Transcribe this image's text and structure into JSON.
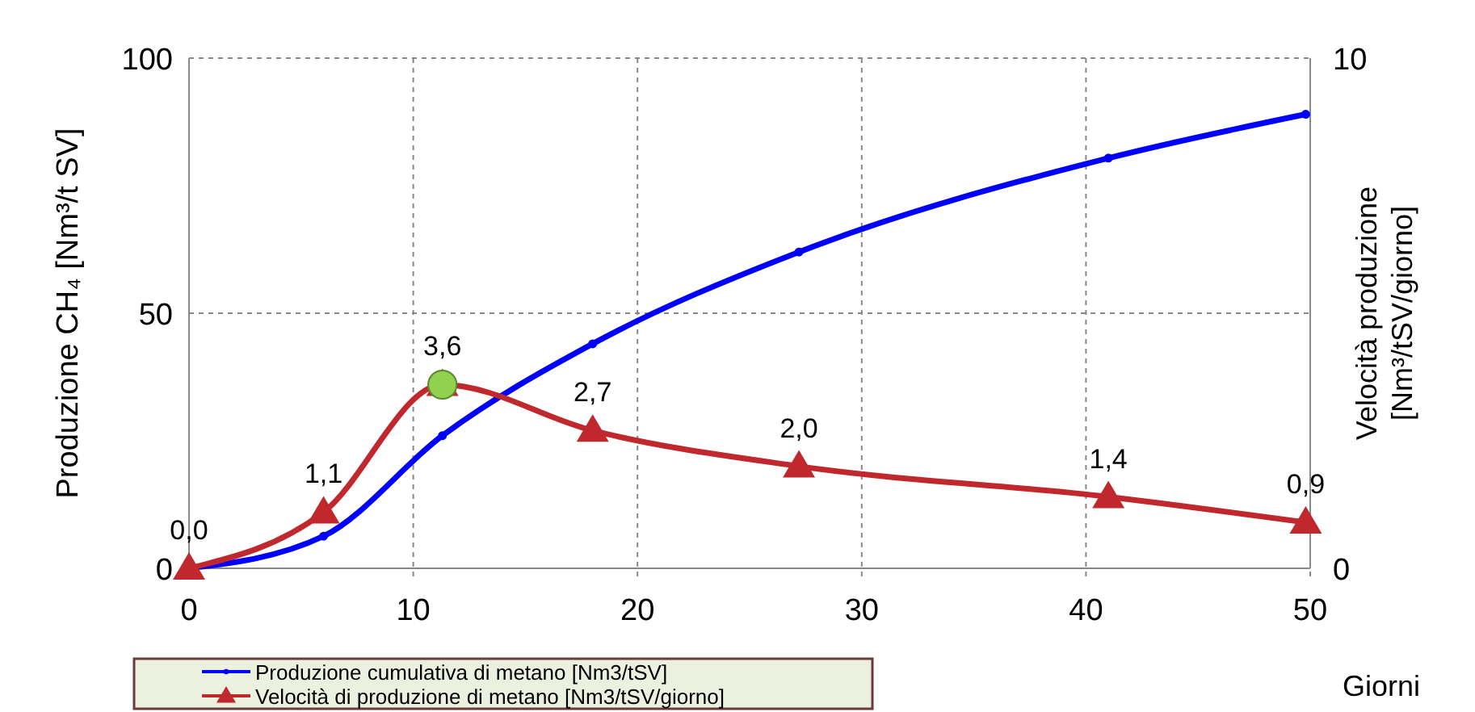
{
  "chart_data": {
    "type": "line",
    "xlabel": "Giorni",
    "ylabel": "Produzione CH₄ [Nm³/t SV]",
    "y2label": "Velocità produzione [Nm³/tSV/giorno]",
    "xlim": [
      0,
      50
    ],
    "xticks": [
      0,
      10,
      20,
      30,
      40,
      50
    ],
    "ylim": [
      0,
      100
    ],
    "yticks": [
      0,
      50,
      100
    ],
    "y2lim": [
      0,
      10
    ],
    "y2ticks": [
      0,
      10
    ],
    "grid": true,
    "legend": "bottom left",
    "line_style": "solid",
    "series": [
      {
        "name": "Produzione cumulativa di metano [Nm3/tSV]",
        "color": "#0000ff",
        "marker": "circle",
        "x": [
          0,
          6,
          11.3,
          18,
          27.2,
          41,
          49.8
        ],
        "values": [
          0,
          6.3,
          26,
          44,
          62,
          80.4,
          89
        ]
      },
      {
        "name": "Velocità di produzione di metano [Nm3/tSV/giorno]",
        "color": "#c0282d",
        "marker": "triangle",
        "axis": "y2",
        "x": [
          0,
          6,
          11.3,
          18,
          27.2,
          41,
          49.8
        ],
        "values": [
          0,
          1.1,
          3.6,
          2.7,
          2.0,
          1.4,
          0.9
        ],
        "value_labels": [
          "0,0",
          "1,1",
          "3,6",
          "2,7",
          "2,0",
          "1,4",
          "0,9"
        ]
      },
      {
        "type": "scatter",
        "color": "#92d050",
        "marker": "circle",
        "axis": "y2",
        "x": [
          11.3
        ],
        "values": [
          3.6
        ]
      }
    ]
  }
}
